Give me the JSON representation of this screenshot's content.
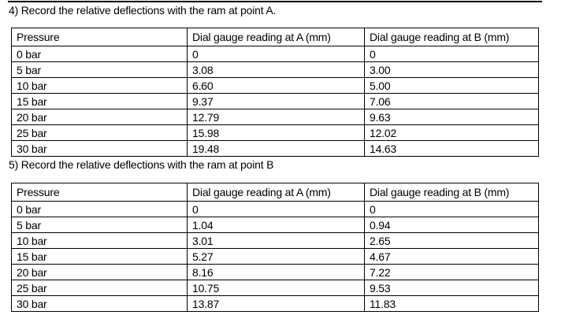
{
  "page": {
    "background_color": "#ffffff",
    "text_color": "#000000",
    "border_color": "#000000"
  },
  "sections": [
    {
      "heading": "4) Record the relative deflections with the ram at point A.",
      "table": {
        "columns": [
          "Pressure",
          "Dial gauge reading at A (mm)",
          "Dial gauge reading at B (mm)"
        ],
        "rows": [
          [
            "0 bar",
            "0",
            "0"
          ],
          [
            "5 bar",
            "3.08",
            "3.00"
          ],
          [
            "10 bar",
            "6.60",
            "5.00"
          ],
          [
            "15 bar",
            "9.37",
            "7.06"
          ],
          [
            "20 bar",
            "12.79",
            "9.63"
          ],
          [
            "25 bar",
            "15.98",
            "12.02"
          ],
          [
            "30 bar",
            "19.48",
            "14.63"
          ]
        ]
      }
    },
    {
      "heading": "5) Record the relative deflections with the ram at point B",
      "table": {
        "columns": [
          "Pressure",
          "Dial gauge reading at A (mm)",
          "Dial gauge reading at B (mm)"
        ],
        "rows": [
          [
            "0 bar",
            "0",
            "0"
          ],
          [
            "5 bar",
            "1.04",
            "0.94"
          ],
          [
            "10 bar",
            "3.01",
            "2.65"
          ],
          [
            "15 bar",
            "5.27",
            "4.67"
          ],
          [
            "20 bar",
            "8.16",
            "7.22"
          ],
          [
            "25 bar",
            "10.75",
            "9.53"
          ],
          [
            "30 bar",
            "13.87",
            "11.83"
          ]
        ]
      }
    }
  ]
}
